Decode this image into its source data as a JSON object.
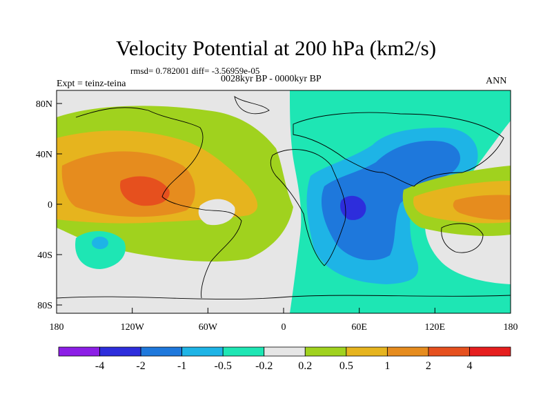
{
  "title": "Velocity Potential at 200 hPa (km2/s)",
  "stats": "rmsd= 0.782001 diff= -3.56959e-05",
  "period": "0028kyr BP - 0000kyr BP",
  "experiment": "Expt = teinz-teina",
  "season": "ANN",
  "lat_ticks": [
    "80N",
    "40N",
    "0",
    "40S",
    "80S"
  ],
  "lon_ticks": [
    "180",
    "120W",
    "60W",
    "0",
    "60E",
    "120E",
    "180"
  ],
  "colorbar": {
    "labels": [
      "-4",
      "-2",
      "-1",
      "-0.5",
      "-0.2",
      "0.2",
      "0.5",
      "1",
      "2",
      "4"
    ],
    "colors": [
      "#8c1ee6",
      "#2d2ddc",
      "#1e78dc",
      "#1eb4e6",
      "#1ee6b4",
      "#e6e6e6",
      "#a0d21e",
      "#e6b41e",
      "#e68c1e",
      "#e6501e",
      "#e61e1e"
    ]
  }
}
